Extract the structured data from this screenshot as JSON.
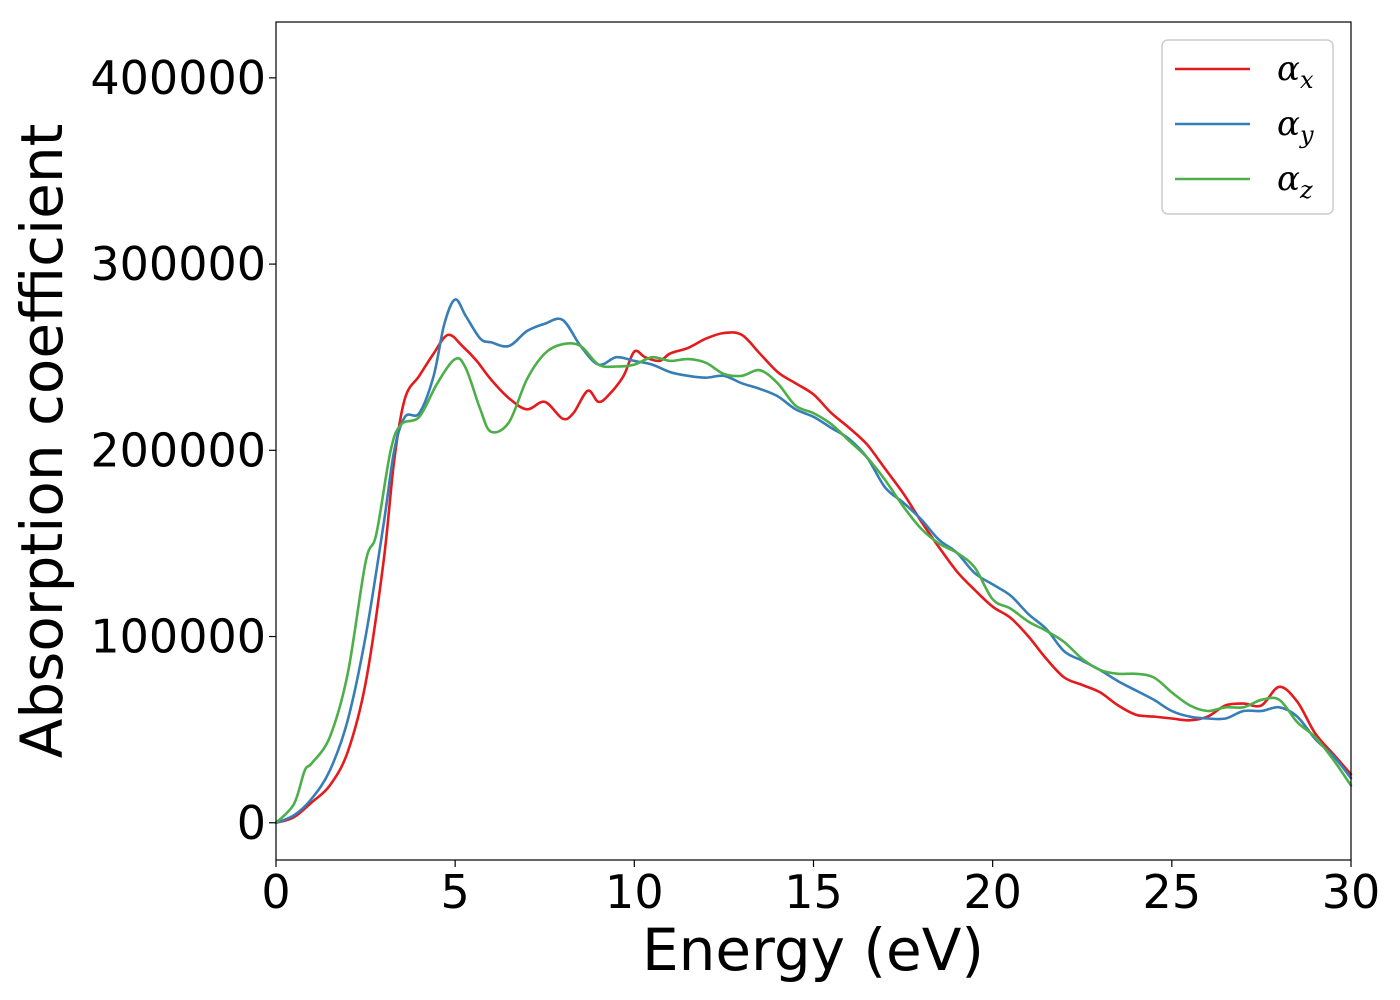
{
  "chart_data": {
    "type": "line",
    "xlabel": "Energy (eV)",
    "ylabel": "Absorption coefficient",
    "xlim": [
      0,
      30
    ],
    "ylim": [
      -20000,
      430000
    ],
    "xticks": [
      0,
      5,
      10,
      15,
      20,
      25,
      30
    ],
    "yticks": [
      0,
      100000,
      200000,
      300000,
      400000
    ],
    "grid": false,
    "legend_position": "top-right",
    "series": [
      {
        "name": "αx",
        "color": "#e41a1c",
        "x": [
          0,
          0.5,
          1,
          1.5,
          2,
          2.5,
          3,
          3.3,
          3.6,
          4,
          4.4,
          4.8,
          5.2,
          5.6,
          6,
          6.5,
          7,
          7.5,
          8,
          8.3,
          8.7,
          9,
          9.3,
          9.7,
          10,
          10.3,
          10.7,
          11,
          11.5,
          12,
          12.5,
          13,
          13.5,
          14,
          14.5,
          15,
          15.5,
          16,
          16.5,
          17,
          17.5,
          18,
          18.5,
          19,
          19.5,
          20,
          20.5,
          21,
          21.5,
          22,
          22.5,
          23,
          23.5,
          24,
          24.5,
          25,
          25.5,
          26,
          26.5,
          27,
          27.5,
          28,
          28.5,
          29,
          29.5,
          30
        ],
        "y": [
          0,
          3000,
          11000,
          20000,
          38000,
          75000,
          140000,
          195000,
          228000,
          240000,
          252000,
          262000,
          256000,
          248000,
          238000,
          228000,
          222000,
          226000,
          217000,
          220000,
          232000,
          226000,
          230000,
          240000,
          253000,
          250000,
          248000,
          252000,
          255000,
          260000,
          263000,
          262000,
          252000,
          242000,
          236000,
          230000,
          220000,
          212000,
          203000,
          190000,
          177000,
          162000,
          148000,
          135000,
          125000,
          116000,
          110000,
          100000,
          88000,
          78000,
          74000,
          70000,
          63000,
          58000,
          57000,
          56000,
          55000,
          57000,
          63000,
          64000,
          63000,
          73000,
          65000,
          48000,
          37000,
          26000
        ]
      },
      {
        "name": "αy",
        "color": "#377eb8",
        "x": [
          0,
          0.5,
          1,
          1.5,
          2,
          2.5,
          3,
          3.3,
          3.6,
          4,
          4.4,
          4.7,
          5,
          5.3,
          5.7,
          6,
          6.5,
          7,
          7.5,
          8,
          8.5,
          9,
          9.5,
          10,
          10.5,
          11,
          11.5,
          12,
          12.5,
          13,
          13.5,
          14,
          14.5,
          15,
          15.5,
          16,
          16.5,
          17,
          17.5,
          18,
          18.5,
          19,
          19.5,
          20,
          20.5,
          21,
          21.5,
          22,
          22.5,
          23,
          23.5,
          24,
          24.5,
          25,
          25.5,
          26,
          26.5,
          27,
          27.5,
          28,
          28.5,
          29,
          29.5,
          30
        ],
        "y": [
          0,
          4000,
          13000,
          28000,
          55000,
          100000,
          160000,
          200000,
          218000,
          220000,
          240000,
          268000,
          281000,
          272000,
          260000,
          258000,
          256000,
          264000,
          268000,
          270000,
          256000,
          246000,
          250000,
          248000,
          246000,
          242000,
          240000,
          239000,
          240000,
          236000,
          233000,
          229000,
          222000,
          218000,
          212000,
          206000,
          196000,
          180000,
          172000,
          163000,
          152000,
          145000,
          134000,
          128000,
          122000,
          112000,
          104000,
          92000,
          87000,
          82000,
          76000,
          71000,
          66000,
          60000,
          57000,
          56000,
          56000,
          60000,
          60000,
          62000,
          57000,
          45000,
          36000,
          24000
        ]
      },
      {
        "name": "αz",
        "color": "#4daf4a",
        "x": [
          0,
          0.5,
          0.8,
          1,
          1.5,
          2,
          2.5,
          2.8,
          3.2,
          3.5,
          4,
          4.5,
          5,
          5.3,
          5.7,
          6,
          6.5,
          7,
          7.5,
          8,
          8.5,
          9,
          9.5,
          10,
          10.5,
          11,
          11.5,
          12,
          12.5,
          13,
          13.5,
          14,
          14.5,
          15,
          15.5,
          16,
          16.5,
          17,
          17.5,
          18,
          18.5,
          19,
          19.5,
          20,
          20.5,
          21,
          21.5,
          22,
          22.5,
          23,
          23.5,
          24,
          24.5,
          25,
          25.5,
          26,
          26.5,
          27,
          27.5,
          28,
          28.5,
          29,
          29.5,
          30
        ],
        "y": [
          0,
          10000,
          28000,
          32000,
          46000,
          80000,
          140000,
          155000,
          200000,
          214000,
          218000,
          236000,
          249000,
          244000,
          222000,
          210000,
          215000,
          238000,
          252000,
          257000,
          256000,
          246000,
          245000,
          246000,
          250000,
          248000,
          249000,
          247000,
          241000,
          240000,
          243000,
          236000,
          224000,
          220000,
          214000,
          205000,
          196000,
          184000,
          170000,
          158000,
          150000,
          145000,
          137000,
          120000,
          115000,
          108000,
          103000,
          97000,
          88000,
          82000,
          80000,
          80000,
          78000,
          70000,
          63000,
          60000,
          62000,
          62000,
          66000,
          66000,
          54000,
          46000,
          34000,
          20000
        ]
      }
    ]
  }
}
